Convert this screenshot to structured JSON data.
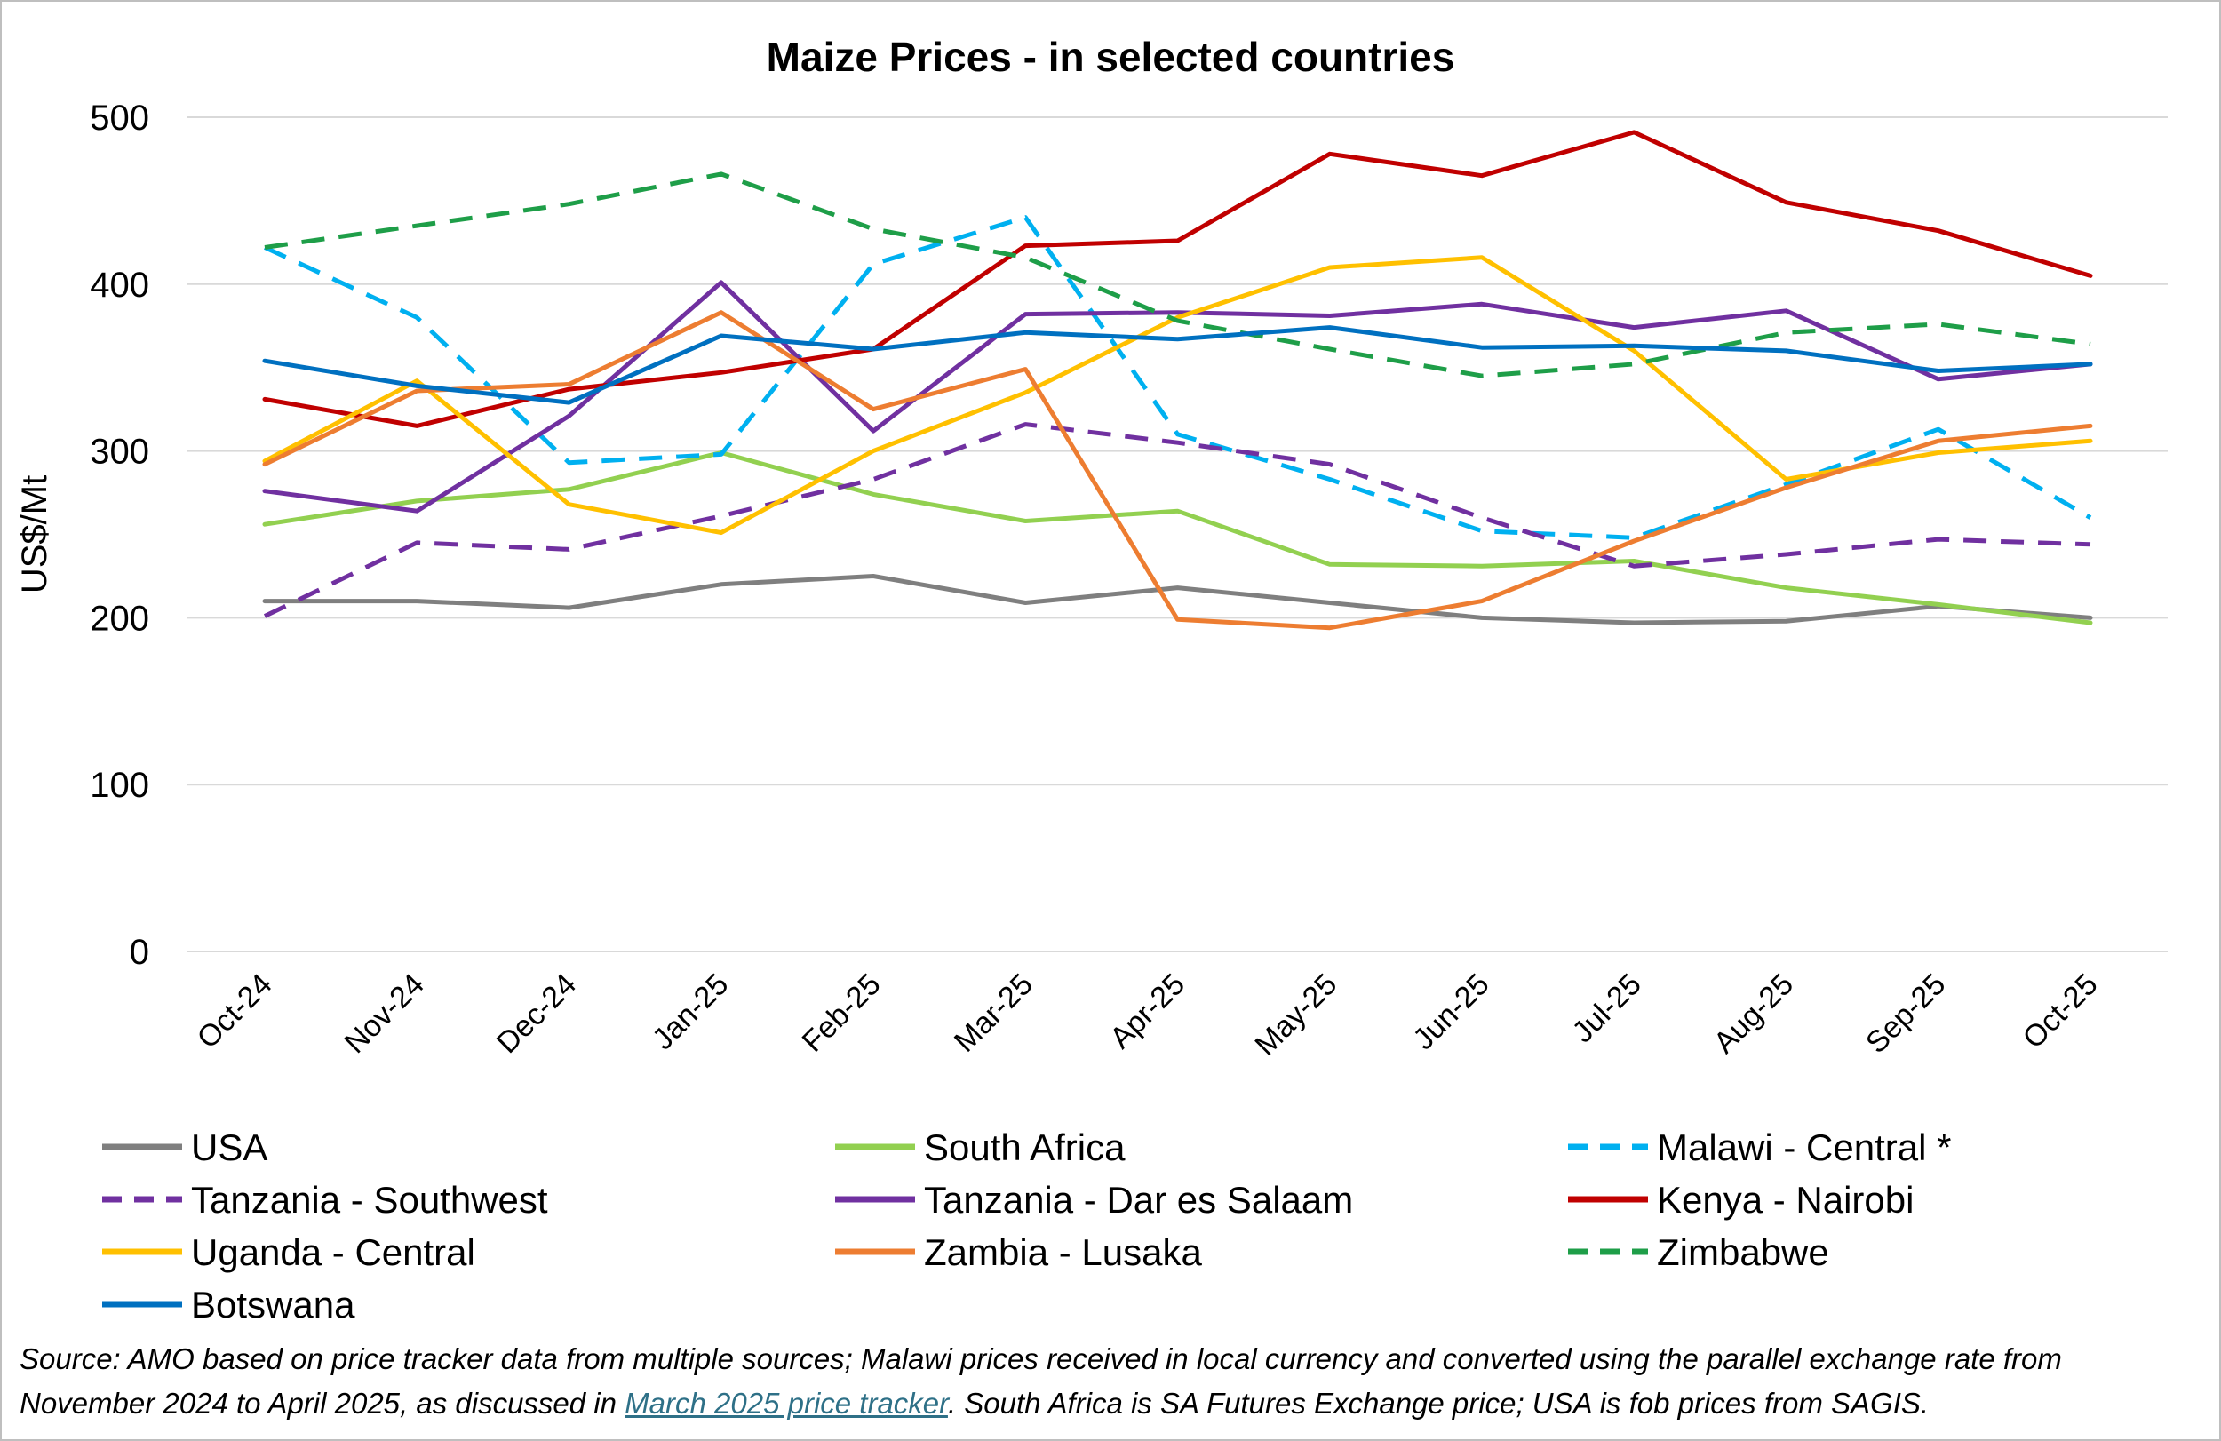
{
  "chart_data": {
    "type": "line",
    "title": "Maize Prices -  in selected countries",
    "xlabel": "",
    "ylabel": "US$/Mt",
    "ylim": [
      0,
      500
    ],
    "yticks": [
      0,
      100,
      200,
      300,
      400,
      500
    ],
    "grid": true,
    "legend_position": "bottom",
    "categories": [
      "Oct-24",
      "Nov-24",
      "Dec-24",
      "Jan-25",
      "Feb-25",
      "Mar-25",
      "Apr-25",
      "May-25",
      "Jun-25",
      "Jul-25",
      "Aug-25",
      "Sep-25",
      "Oct-25"
    ],
    "series": [
      {
        "name": "USA",
        "color": "#7f7f7f",
        "dash": "solid",
        "values": [
          210,
          210,
          206,
          220,
          225,
          209,
          218,
          209,
          200,
          197,
          198,
          207,
          200
        ]
      },
      {
        "name": "South Africa",
        "color": "#92d050",
        "dash": "solid",
        "values": [
          256,
          270,
          277,
          299,
          274,
          258,
          264,
          232,
          231,
          234,
          218,
          208,
          197
        ]
      },
      {
        "name": "Malawi - Central *",
        "color": "#00b0f0",
        "dash": "dashed",
        "values": [
          422,
          380,
          293,
          298,
          412,
          440,
          310,
          283,
          252,
          248,
          280,
          313,
          260
        ]
      },
      {
        "name": "Tanzania -  Southwest",
        "color": "#7030a0",
        "dash": "dashed",
        "values": [
          201,
          245,
          241,
          261,
          283,
          316,
          305,
          292,
          260,
          231,
          238,
          247,
          244
        ]
      },
      {
        "name": "Tanzania - Dar es Salaam",
        "color": "#7030a0",
        "dash": "solid",
        "values": [
          276,
          264,
          321,
          401,
          312,
          382,
          383,
          381,
          388,
          374,
          384,
          343,
          352
        ]
      },
      {
        "name": "Kenya - Nairobi",
        "color": "#c00000",
        "dash": "solid",
        "values": [
          331,
          315,
          337,
          347,
          361,
          423,
          426,
          478,
          465,
          491,
          449,
          432,
          405
        ]
      },
      {
        "name": "Uganda - Central",
        "color": "#ffc000",
        "dash": "solid",
        "values": [
          294,
          342,
          268,
          251,
          300,
          335,
          380,
          410,
          416,
          360,
          283,
          299,
          306
        ]
      },
      {
        "name": "Zambia - Lusaka",
        "color": "#ed7d31",
        "dash": "solid",
        "values": [
          292,
          336,
          340,
          383,
          325,
          349,
          199,
          194,
          210,
          246,
          278,
          306,
          315
        ]
      },
      {
        "name": "Zimbabwe",
        "color": "#1e9e48",
        "dash": "dashed",
        "values": [
          422,
          435,
          448,
          466,
          433,
          416,
          378,
          361,
          345,
          352,
          371,
          376,
          364
        ]
      },
      {
        "name": "Botswana",
        "color": "#0070c0",
        "dash": "solid",
        "values": [
          354,
          339,
          329,
          369,
          361,
          371,
          367,
          374,
          362,
          363,
          360,
          348,
          352
        ]
      }
    ]
  },
  "footnote": {
    "part1": "Source: AMO based on price tracker data from multiple sources; Malawi prices received in local currency and converted using the parallel exchange rate from November 2024 to April 2025, as discussed in ",
    "link": "March 2025 price tracker",
    "part2": ". South Africa is SA Futures Exchange price; USA is fob prices from SAGIS."
  }
}
